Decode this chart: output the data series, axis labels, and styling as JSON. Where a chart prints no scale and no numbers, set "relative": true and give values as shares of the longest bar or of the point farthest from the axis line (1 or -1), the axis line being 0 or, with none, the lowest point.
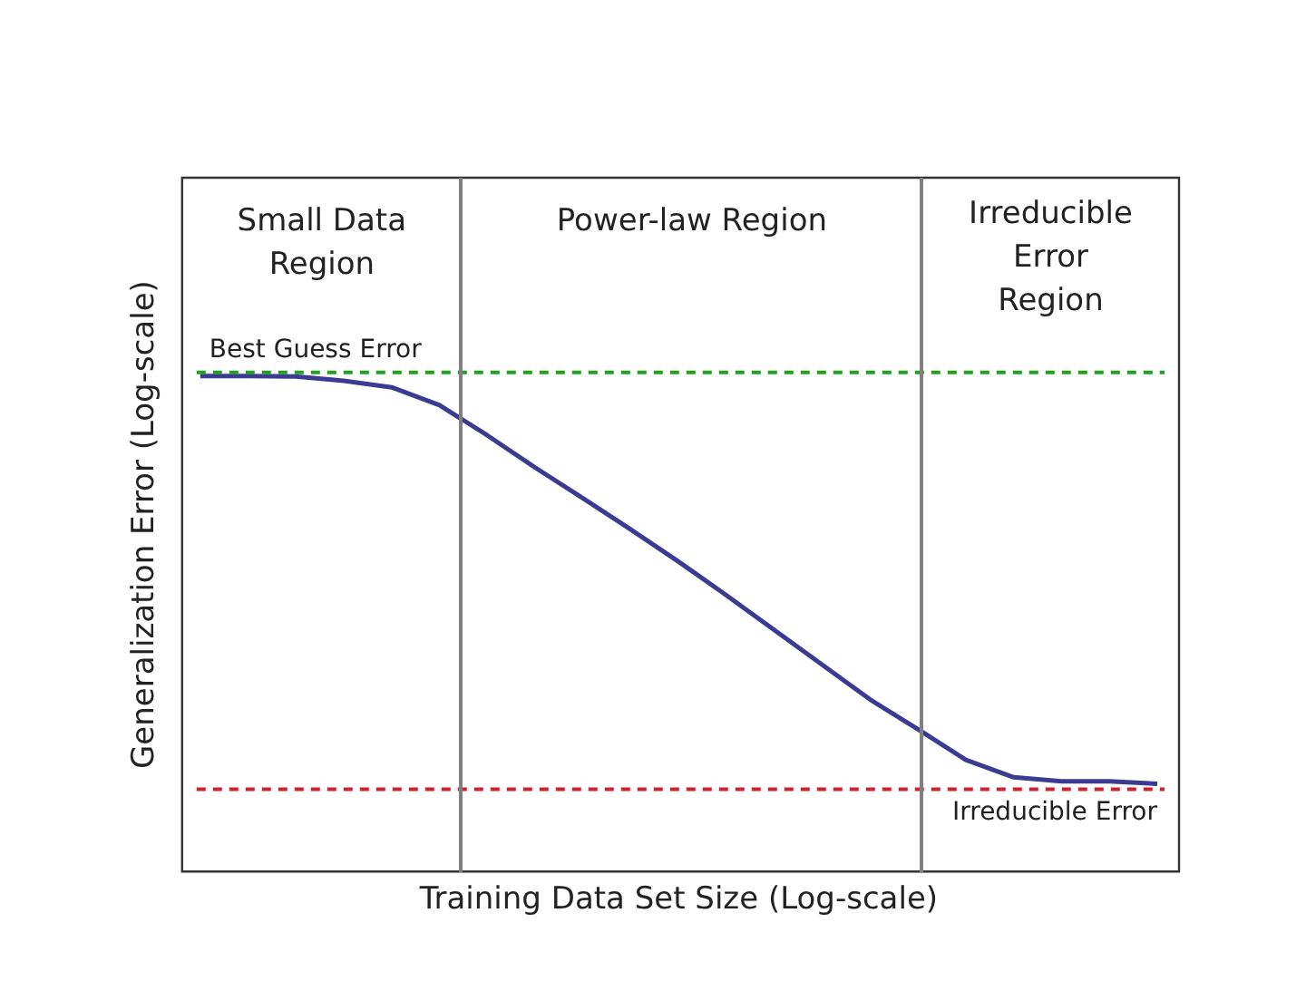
{
  "chart_data": {
    "type": "line",
    "relative": true,
    "xlabel": "Training Data Set Size (Log-scale)",
    "ylabel": "Generalization Error (Log-scale)",
    "categories": [
      null,
      null,
      null,
      null,
      null,
      null,
      null,
      null,
      null,
      null,
      null,
      null,
      null,
      null,
      null,
      null,
      null,
      null,
      null,
      null,
      null
    ],
    "series": [
      {
        "color": "#3b3b94",
        "values": [
          1.0,
          1.0,
          0.999,
          0.99,
          0.977,
          0.941,
          0.88,
          0.815,
          0.753,
          0.69,
          0.625,
          0.557,
          0.487,
          0.417,
          0.347,
          0.287,
          0.225,
          0.19,
          0.182,
          0.182,
          0.177
        ]
      }
    ],
    "ref_lines": [
      {
        "axis": "y",
        "value": 1.007,
        "label": "Best Guess Error",
        "color": "#22a022",
        "line_style": "dashed"
      },
      {
        "axis": "y",
        "value": 0.166,
        "label": "Irreducible Error",
        "color": "#cc2233",
        "line_style": "dashed"
      }
    ],
    "annotations": [
      "Small Data Region",
      "Power-law Region",
      "Irreducible Error Region"
    ],
    "grid": false,
    "legend": false,
    "marker": "none",
    "line_style": "solid"
  }
}
